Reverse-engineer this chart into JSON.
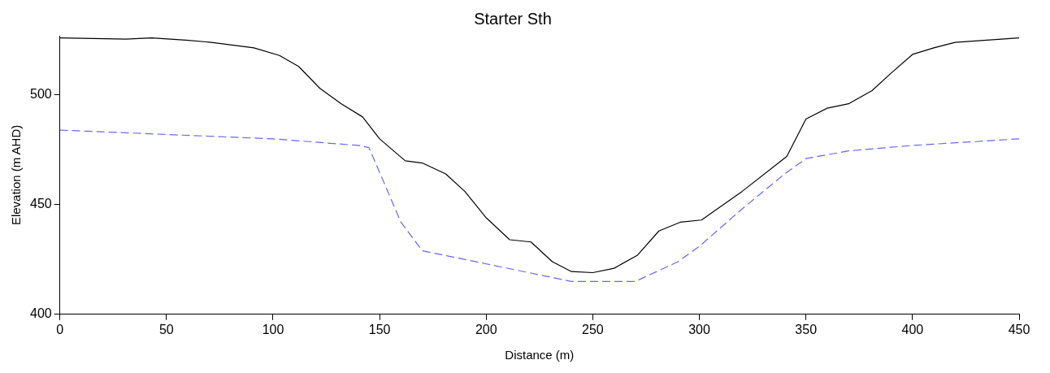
{
  "chart_data": {
    "type": "line",
    "title": "Starter Sth",
    "xlabel": "Distance (m)",
    "ylabel": "Elevation (m AHD)",
    "xlim": [
      0,
      450
    ],
    "xticks": [
      0,
      50,
      100,
      150,
      200,
      250,
      300,
      350,
      400,
      450
    ],
    "ylim": [
      400,
      527
    ],
    "yticks": [
      400,
      450,
      500
    ],
    "grid": false,
    "legend": false,
    "marker": "none",
    "series": [
      {
        "color": "#000000",
        "line_style": "solid",
        "x": [
          0,
          31,
          43,
          59,
          71,
          91,
          103,
          112,
          122,
          132,
          142,
          150,
          162,
          170,
          181,
          190,
          200,
          211,
          221,
          231,
          240,
          250,
          260,
          271,
          281,
          291,
          301,
          320,
          341,
          350,
          360,
          370,
          381,
          390,
          400,
          410,
          420,
          450
        ],
        "values": [
          526,
          525.5,
          526,
          525,
          524,
          521.5,
          518,
          513,
          503,
          496,
          490,
          480,
          470,
          469,
          464,
          456,
          444,
          434,
          433,
          424,
          419.5,
          419,
          421,
          427,
          438,
          442,
          443,
          456,
          472,
          489,
          494,
          496,
          502,
          510,
          518.5,
          521.5,
          524,
          526
        ]
      },
      {
        "color": "#6666ee",
        "line_style": "dashed",
        "x": [
          0,
          50,
          100,
          140,
          145,
          160,
          170,
          200,
          230,
          240,
          270,
          290,
          300,
          320,
          340,
          350,
          370,
          400,
          450
        ],
        "values": [
          484,
          482,
          480,
          477,
          476,
          442,
          429,
          423,
          417,
          415,
          415,
          424,
          431,
          448,
          464,
          471,
          474.5,
          477,
          480
        ]
      }
    ]
  }
}
